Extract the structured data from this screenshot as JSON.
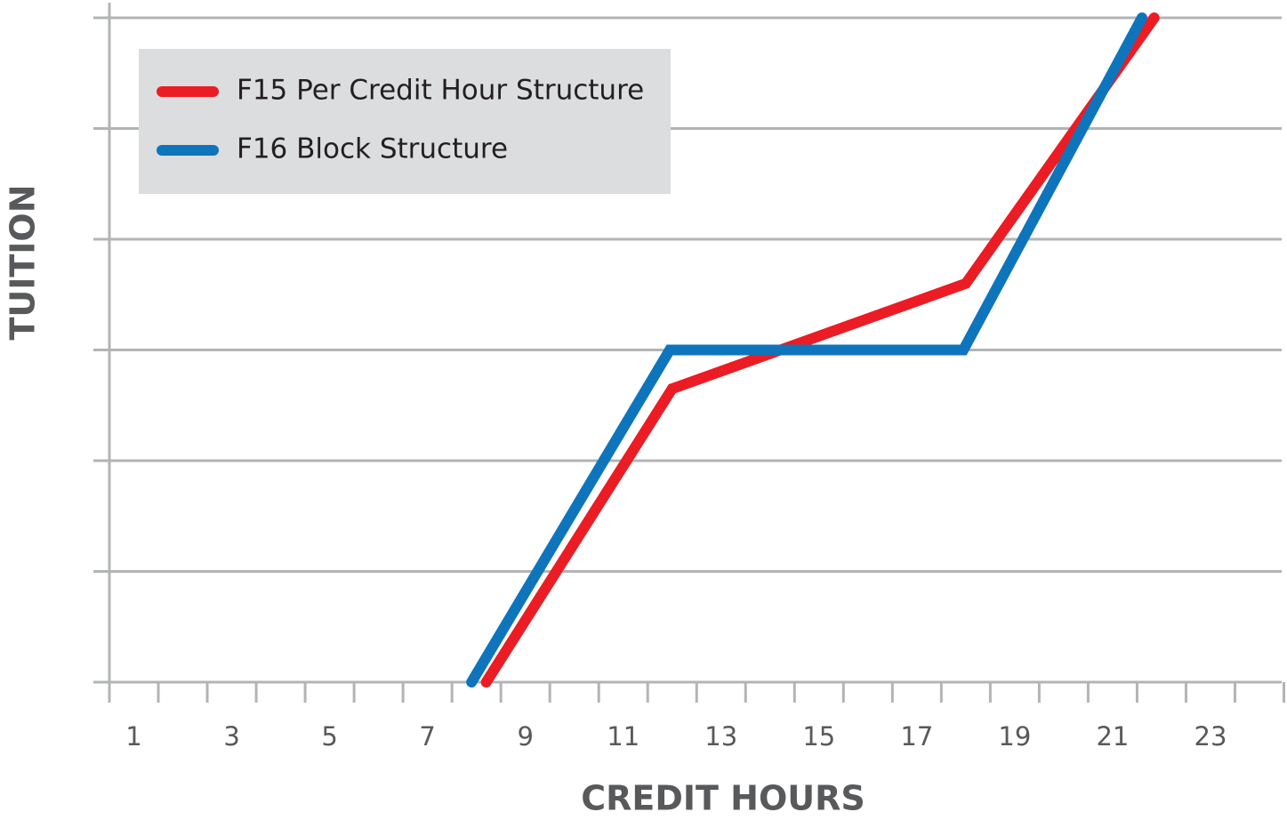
{
  "chart_data": {
    "type": "line",
    "x_label": "CREDIT HOURS",
    "y_label": "TUITION",
    "xlim": [
      0.5,
      24.5
    ],
    "xticks": [
      1,
      3,
      5,
      7,
      9,
      11,
      13,
      15,
      17,
      19,
      21,
      23
    ],
    "xtick_marks": [
      0.5,
      1.5,
      2.5,
      3.5,
      4.5,
      5.5,
      6.5,
      7.5,
      8.5,
      9.5,
      10.5,
      11.5,
      12.5,
      13.5,
      14.5,
      15.5,
      16.5,
      17.5,
      18.5,
      19.5,
      20.5,
      21.5,
      22.5,
      23.5,
      24.5
    ],
    "ylim": [
      0,
      6
    ],
    "ygrid": [
      0,
      1,
      2,
      3,
      4,
      5,
      6
    ],
    "grid": true,
    "legend": "upper left",
    "series": [
      {
        "name": "F15 Per Credit Hour Structure",
        "color": "#ec1c24",
        "x": [
          8.2,
          12,
          18,
          21.85
        ],
        "values": [
          0,
          2.65,
          3.6,
          6
        ]
      },
      {
        "name": "F16 Block Structure",
        "color": "#0e75bc",
        "x": [
          7.9,
          11.95,
          17.95,
          21.6
        ],
        "values": [
          0,
          3,
          3,
          6
        ]
      }
    ]
  }
}
